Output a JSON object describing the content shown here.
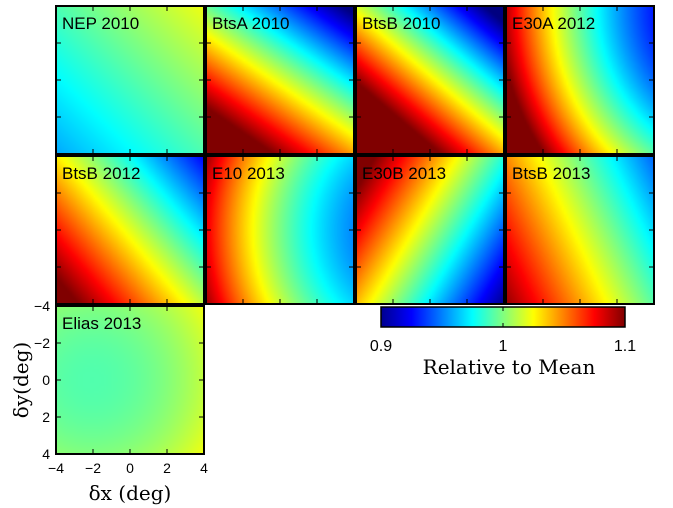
{
  "chart_data": {
    "type": "heatmap",
    "colormap": "jet",
    "color_range": [
      0.9,
      1.1
    ],
    "xlabel": "δx (deg)",
    "ylabel": "δy(deg)",
    "xlim": [
      -4,
      4
    ],
    "ylim": [
      -4,
      4
    ],
    "xticks": [
      "−4",
      "−2",
      "0",
      "2",
      "4"
    ],
    "yticks": [
      "−4",
      "−2",
      "0",
      "2",
      "4"
    ],
    "colorbar": {
      "label": "Relative to Mean",
      "ticks": [
        "0.9",
        "1",
        "1.1"
      ],
      "tick_values": [
        0.9,
        1.0,
        1.1
      ],
      "range": [
        0.9,
        1.1
      ]
    },
    "panels": [
      {
        "name": "NEP 2010",
        "row": 0,
        "col": 0,
        "center": 0.99,
        "gx": 0.004,
        "gy": -0.004,
        "curv": 0.0
      },
      {
        "name": "BtsA 2010",
        "row": 0,
        "col": 1,
        "center": 1.02,
        "gx": -0.013,
        "gy": 0.019,
        "curv": 0.0
      },
      {
        "name": "BtsB 2010",
        "row": 0,
        "col": 2,
        "center": 1.03,
        "gx": -0.017,
        "gy": 0.02,
        "curv": 0.0
      },
      {
        "name": "E30A 2012",
        "row": 0,
        "col": 3,
        "center": 1.02,
        "gx": -0.02,
        "gy": 0.008,
        "curv": 0.001
      },
      {
        "name": "BtsB 2012",
        "row": 1,
        "col": 0,
        "center": 1.02,
        "gx": -0.013,
        "gy": 0.011,
        "curv": 0.0
      },
      {
        "name": "E10 2013",
        "row": 1,
        "col": 1,
        "center": 1.01,
        "gx": -0.016,
        "gy": 0.0,
        "curv": 0.001
      },
      {
        "name": "E30B 2013",
        "row": 1,
        "col": 2,
        "center": 1.01,
        "gx": -0.017,
        "gy": -0.01,
        "curv": 0.0
      },
      {
        "name": "BtsB 2013",
        "row": 1,
        "col": 3,
        "center": 1.02,
        "gx": -0.013,
        "gy": 0.006,
        "curv": 0.0
      },
      {
        "name": "Elias 2013",
        "row": 2,
        "col": 0,
        "center": 1.0,
        "gx": 0.0025,
        "gy": 0.0,
        "curv": 0.0006
      }
    ]
  }
}
